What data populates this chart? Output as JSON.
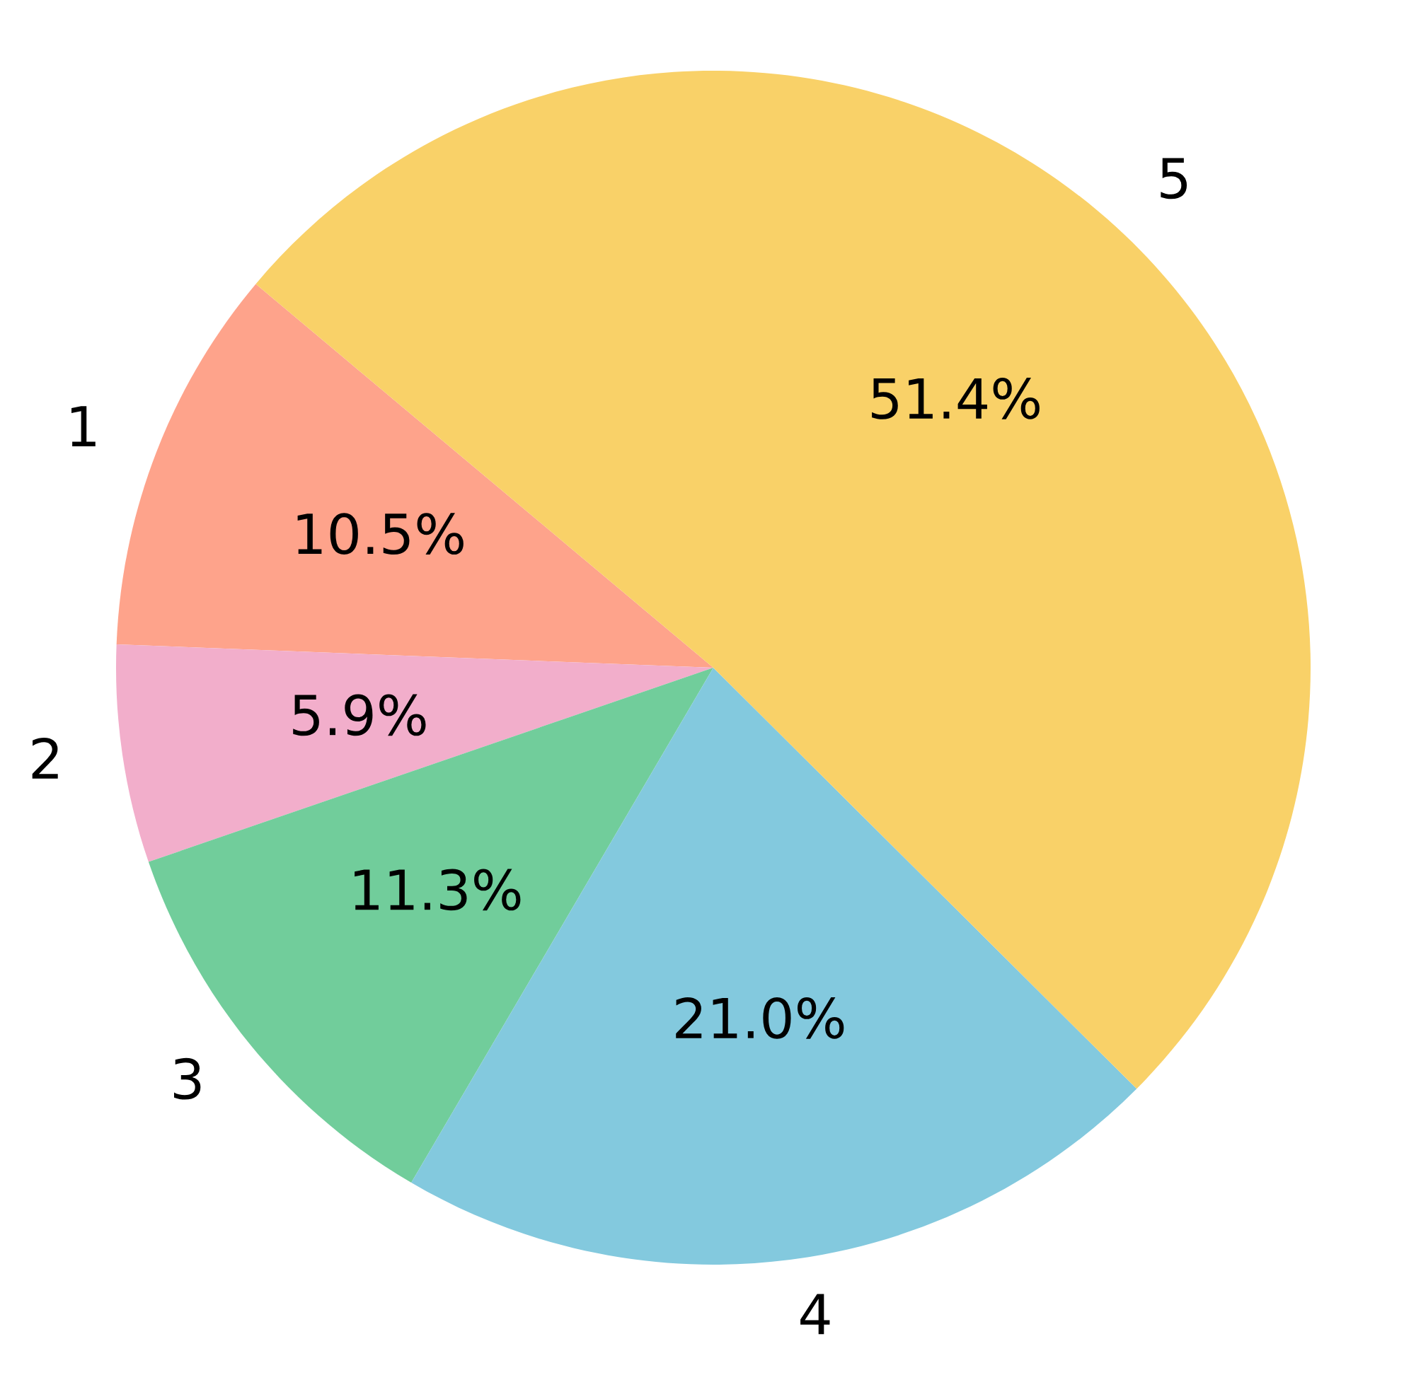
{
  "chart_data": {
    "type": "pie",
    "categories": [
      "1",
      "2",
      "3",
      "4",
      "5"
    ],
    "values": [
      10.5,
      5.9,
      11.3,
      21.0,
      51.4
    ],
    "value_labels": [
      "10.5%",
      "5.9%",
      "11.3%",
      "21.0%",
      "51.4%"
    ],
    "colors": [
      "#fea38b",
      "#f2aecb",
      "#71cd9b",
      "#83c9de",
      "#f9d168"
    ]
  }
}
